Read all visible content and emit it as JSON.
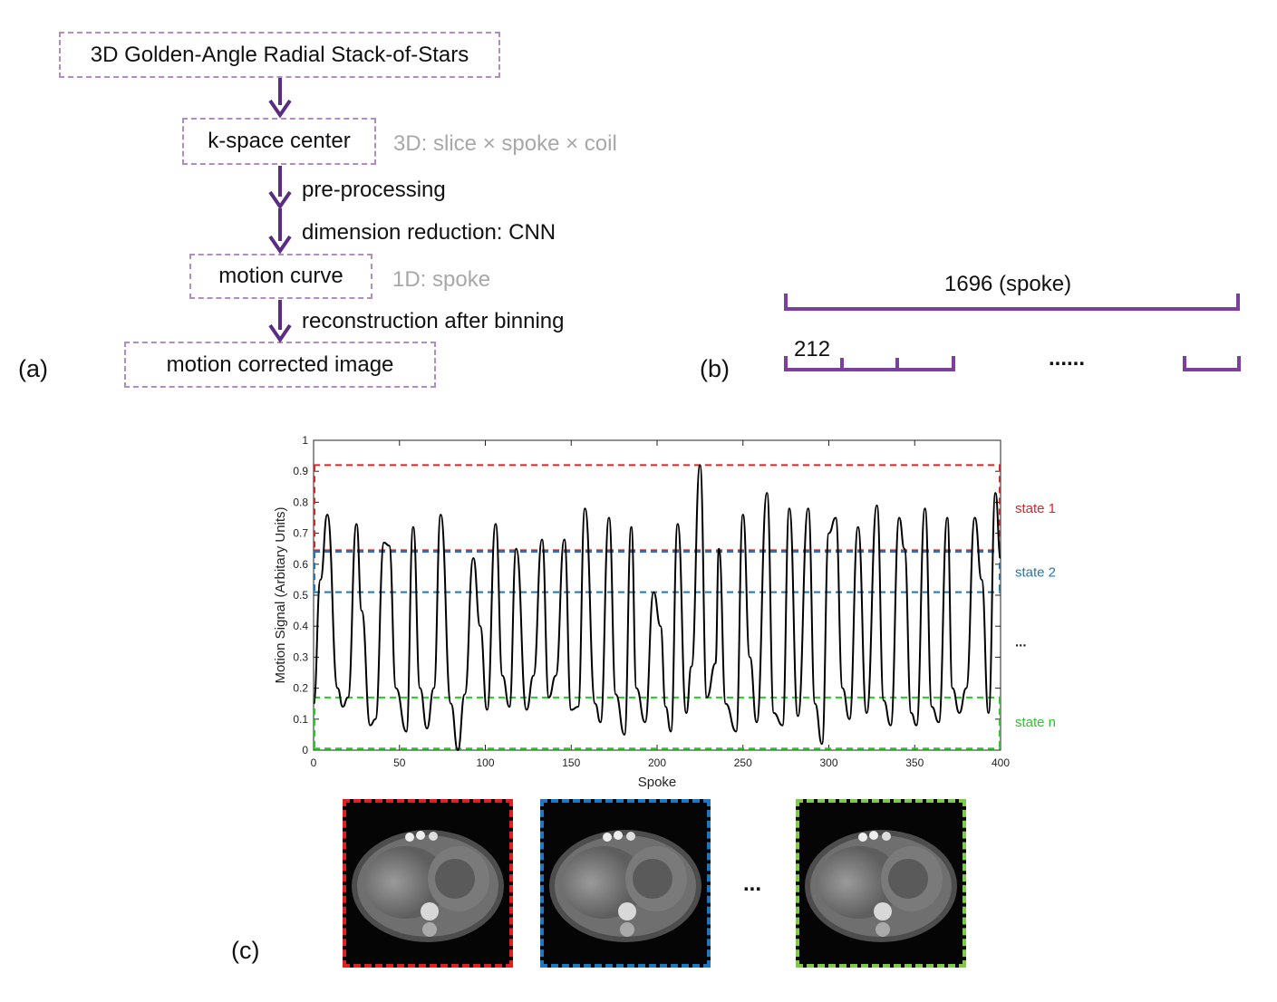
{
  "panel_a": {
    "label": "(a)",
    "boxes": {
      "acquisition": "3D Golden-Angle Radial Stack-of-Stars",
      "kspace": "k-space center",
      "motion_curve": "motion curve",
      "output": "motion corrected image"
    },
    "notes": {
      "kspace_dims": "3D: slice × spoke × coil",
      "curve_dims": "1D: spoke"
    },
    "steps": {
      "preprocessing": "pre-processing",
      "dimension_reduction": "dimension reduction: CNN",
      "reconstruction": "reconstruction after binning"
    },
    "arrow_color": "#5b2c83"
  },
  "panel_b": {
    "label": "(b)",
    "total_label": "1696 (spoke)",
    "segment_label": "212",
    "ellipsis": "......",
    "bracket_color": "#7b3fa0"
  },
  "panel_c": {
    "label": "(c)",
    "images_ellipsis": "...",
    "image_frame_colors": [
      "#e02020",
      "#1f77c4",
      "#7ec84a"
    ]
  },
  "chart_data": {
    "type": "line",
    "title": "",
    "xlabel": "Spoke",
    "ylabel": "Motion Signal (Arbitary Units)",
    "xlim": [
      0,
      400
    ],
    "ylim": [
      0,
      1
    ],
    "xticks": [
      0,
      50,
      100,
      150,
      200,
      250,
      300,
      350,
      400
    ],
    "yticks": [
      0,
      0.1,
      0.2,
      0.3,
      0.4,
      0.5,
      0.6,
      0.7,
      0.8,
      0.9,
      1
    ],
    "series": [
      {
        "color": "#000000",
        "x": [
          0,
          4,
          8,
          14,
          17,
          20,
          25,
          28,
          33,
          36,
          41,
          44,
          48,
          54,
          58,
          62,
          66,
          70,
          74,
          80,
          84,
          88,
          93,
          97,
          101,
          106,
          110,
          114,
          118,
          124,
          128,
          133,
          137,
          141,
          146,
          150,
          154,
          158,
          164,
          167,
          172,
          176,
          181,
          185,
          188,
          193,
          198,
          202,
          205,
          208,
          212,
          217,
          220,
          225,
          229,
          234,
          236,
          240,
          246,
          250,
          254,
          258,
          264,
          268,
          273,
          277,
          282,
          288,
          292,
          296,
          300,
          304,
          308,
          312,
          317,
          322,
          328,
          332,
          336,
          341,
          344,
          348,
          351,
          356,
          360,
          364,
          369,
          372,
          376,
          380,
          385,
          389,
          393,
          397,
          400
        ],
        "y": [
          0.15,
          0.55,
          0.76,
          0.2,
          0.14,
          0.17,
          0.73,
          0.45,
          0.08,
          0.1,
          0.67,
          0.66,
          0.2,
          0.06,
          0.72,
          0.2,
          0.07,
          0.2,
          0.76,
          0.15,
          0.0,
          0.18,
          0.62,
          0.4,
          0.13,
          0.73,
          0.24,
          0.14,
          0.65,
          0.13,
          0.24,
          0.68,
          0.17,
          0.24,
          0.68,
          0.13,
          0.14,
          0.78,
          0.15,
          0.09,
          0.75,
          0.18,
          0.05,
          0.72,
          0.2,
          0.09,
          0.51,
          0.4,
          0.14,
          0.06,
          0.73,
          0.12,
          0.27,
          0.92,
          0.17,
          0.28,
          0.65,
          0.15,
          0.06,
          0.76,
          0.3,
          0.09,
          0.83,
          0.12,
          0.08,
          0.78,
          0.11,
          0.78,
          0.15,
          0.02,
          0.7,
          0.75,
          0.2,
          0.1,
          0.72,
          0.12,
          0.79,
          0.16,
          0.08,
          0.75,
          0.65,
          0.12,
          0.08,
          0.78,
          0.14,
          0.09,
          0.75,
          0.2,
          0.12,
          0.2,
          0.75,
          0.55,
          0.12,
          0.83,
          0.62
        ]
      }
    ],
    "thresholds": [
      {
        "y": 0.92,
        "color": "#d62728"
      },
      {
        "y": 0.645,
        "color": "#d62728"
      },
      {
        "y": 0.64,
        "color": "#1f77b4"
      },
      {
        "y": 0.51,
        "color": "#1f77b4"
      },
      {
        "y": 0.17,
        "color": "#22cc22"
      },
      {
        "y": 0.005,
        "color": "#22cc22"
      }
    ],
    "state_boxes": [
      {
        "label": "state 1",
        "ymin": 0.645,
        "ymax": 0.92,
        "color": "#d62728"
      },
      {
        "label": "state 2",
        "ymin": 0.51,
        "ymax": 0.64,
        "color": "#1f77b4"
      },
      {
        "label": "...",
        "color": "#222222"
      },
      {
        "label": "state n",
        "ymin": 0.005,
        "ymax": 0.17,
        "color": "#22cc22"
      }
    ]
  }
}
